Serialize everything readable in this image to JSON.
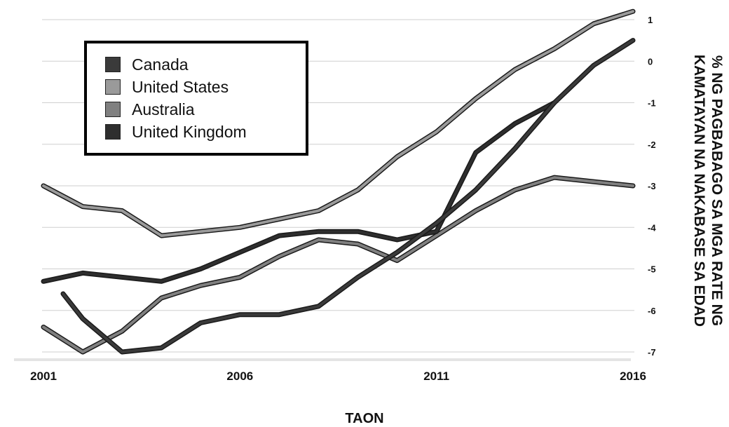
{
  "chart_data": {
    "type": "line",
    "xlabel": "TAON",
    "ylabel": "% NG PAGBABAGO SA MGA RATE NG KAMATAYAN NA NAKABASE SA EDAD",
    "x_ticks": [
      "2001",
      "2006",
      "2011",
      "2016"
    ],
    "y_ticks": [
      "1",
      "0",
      "-1",
      "-2",
      "-3",
      "-4",
      "-5",
      "-6",
      "-7"
    ],
    "xlim": [
      2001,
      2016
    ],
    "ylim": [
      -7,
      1
    ],
    "grid": true,
    "legend_position": "top-left",
    "series": [
      {
        "name": "Canada",
        "color": "#3a3a3a",
        "points": [
          [
            2001.5,
            -5.6
          ],
          [
            2002,
            -6.2
          ],
          [
            2003,
            -7.0
          ],
          [
            2004,
            -6.9
          ],
          [
            2005,
            -6.3
          ],
          [
            2006,
            -6.1
          ],
          [
            2007,
            -6.1
          ],
          [
            2008,
            -5.9
          ],
          [
            2009,
            -5.2
          ],
          [
            2010,
            -4.6
          ],
          [
            2011,
            -3.9
          ],
          [
            2012,
            -3.1
          ],
          [
            2013,
            -2.1
          ],
          [
            2014,
            -1.0
          ],
          [
            2015,
            -0.1
          ],
          [
            2016,
            0.5
          ]
        ]
      },
      {
        "name": "United States",
        "color": "#9a9a9a",
        "points": [
          [
            2001,
            -3.0
          ],
          [
            2002,
            -3.5
          ],
          [
            2003,
            -3.6
          ],
          [
            2004,
            -4.2
          ],
          [
            2005,
            -4.1
          ],
          [
            2006,
            -4.0
          ],
          [
            2007,
            -3.8
          ],
          [
            2008,
            -3.6
          ],
          [
            2009,
            -3.1
          ],
          [
            2010,
            -2.3
          ],
          [
            2011,
            -1.7
          ],
          [
            2012,
            -0.9
          ],
          [
            2013,
            -0.2
          ],
          [
            2014,
            0.3
          ],
          [
            2015,
            0.9
          ],
          [
            2016,
            1.2
          ]
        ]
      },
      {
        "name": "Australia",
        "color": "#808080",
        "points": [
          [
            2001,
            -6.4
          ],
          [
            2002,
            -7.0
          ],
          [
            2003,
            -6.5
          ],
          [
            2004,
            -5.7
          ],
          [
            2005,
            -5.4
          ],
          [
            2006,
            -5.2
          ],
          [
            2007,
            -4.7
          ],
          [
            2008,
            -4.3
          ],
          [
            2009,
            -4.4
          ],
          [
            2010,
            -4.8
          ],
          [
            2011,
            -4.2
          ],
          [
            2012,
            -3.6
          ],
          [
            2013,
            -3.1
          ],
          [
            2014,
            -2.8
          ],
          [
            2015,
            -2.9
          ],
          [
            2016,
            -3.0
          ]
        ]
      },
      {
        "name": "United Kingdom",
        "color": "#2e2e2e",
        "points": [
          [
            2001,
            -5.3
          ],
          [
            2002,
            -5.1
          ],
          [
            2003,
            -5.2
          ],
          [
            2004,
            -5.3
          ],
          [
            2005,
            -5.0
          ],
          [
            2006,
            -4.6
          ],
          [
            2007,
            -4.2
          ],
          [
            2008,
            -4.1
          ],
          [
            2009,
            -4.1
          ],
          [
            2010,
            -4.3
          ],
          [
            2011,
            -4.1
          ],
          [
            2012,
            -2.2
          ],
          [
            2013,
            -1.5
          ],
          [
            2014,
            -1.0
          ]
        ]
      }
    ]
  }
}
